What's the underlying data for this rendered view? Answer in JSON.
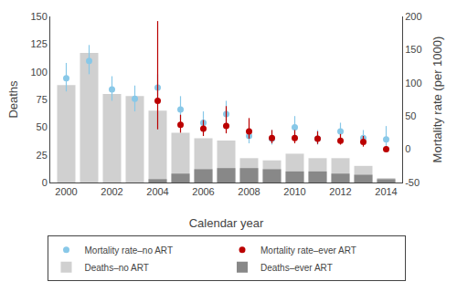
{
  "chart_data": {
    "type": "bar",
    "x": [
      2000,
      2001,
      2002,
      2003,
      2004,
      2005,
      2006,
      2007,
      2008,
      2009,
      2010,
      2011,
      2012,
      2013,
      2014
    ],
    "xlabel": "Calendar year",
    "ylabel": "Deaths",
    "y2label": "Mortality rate (per 1000)",
    "xlim": [
      1999.3,
      2014.7
    ],
    "xticks": [
      2000,
      2002,
      2004,
      2006,
      2008,
      2010,
      2012,
      2014
    ],
    "ylim": [
      0,
      150
    ],
    "yticks": [
      0,
      25,
      50,
      75,
      100,
      125,
      150
    ],
    "y2lim": [
      -50,
      200
    ],
    "y2ticks": [
      -50,
      0,
      50,
      100,
      150,
      200
    ],
    "grid": false,
    "legend": "bottom",
    "series": [
      {
        "name": "Deaths–no ART",
        "type": "bar",
        "color": "#d0d0d0",
        "values": [
          88,
          117,
          80,
          78,
          65,
          45,
          40,
          38,
          22,
          20,
          26,
          22,
          22,
          15,
          4
        ]
      },
      {
        "name": "Deaths–ever ART",
        "type": "bar",
        "color": "#888888",
        "values": [
          0,
          0,
          0,
          0,
          3,
          8,
          12,
          13,
          13,
          12,
          10,
          10,
          8,
          7,
          3
        ]
      },
      {
        "name": "Mortality rate–no ART",
        "type": "scatter",
        "marker": "circle",
        "axis": "y2",
        "color": "#88c8e8",
        "values": [
          107,
          133,
          90,
          76,
          93,
          60,
          40,
          53,
          20,
          16,
          33,
          16,
          27,
          17,
          15
        ],
        "lo": [
          87,
          113,
          73,
          57,
          76,
          44,
          24,
          36,
          9,
          7,
          20,
          7,
          16,
          8,
          5
        ],
        "hi": [
          130,
          157,
          110,
          96,
          113,
          80,
          57,
          73,
          33,
          29,
          50,
          29,
          40,
          29,
          35
        ]
      },
      {
        "name": "Mortality rate–ever ART",
        "type": "scatter",
        "marker": "circle",
        "axis": "y2",
        "color": "#bb0000",
        "values": [
          null,
          null,
          null,
          null,
          73,
          37,
          31,
          35,
          27,
          17,
          17,
          16,
          13,
          11,
          0
        ],
        "lo": [
          null,
          null,
          null,
          null,
          30,
          25,
          20,
          24,
          16,
          9,
          9,
          8,
          7,
          4,
          -3
        ],
        "hi": [
          null,
          null,
          null,
          null,
          193,
          52,
          44,
          65,
          47,
          29,
          29,
          27,
          23,
          20,
          4
        ]
      }
    ]
  }
}
